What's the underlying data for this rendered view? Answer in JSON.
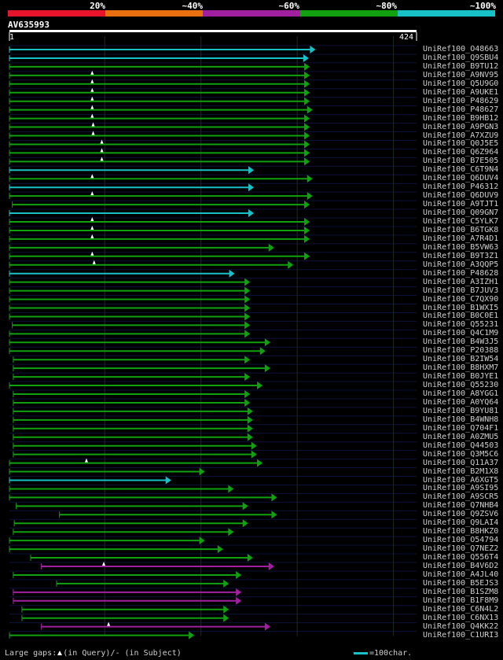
{
  "header": {
    "bands": [
      {
        "label": "20%",
        "color": "#e8142c"
      },
      {
        "label": "~40%",
        "color": "#e87010"
      },
      {
        "label": "~60%",
        "color": "#a020a0"
      },
      {
        "label": "~80%",
        "color": "#10a010"
      },
      {
        "label": "~100%",
        "color": "#18c0c8"
      }
    ]
  },
  "query": {
    "id": "AV635993",
    "start": "1",
    "end": "424",
    "length": 424,
    "line_color": "#ffffff"
  },
  "chart_data": {
    "type": "alignment-overview",
    "x_range": [
      1,
      424
    ],
    "grid_positions": [
      100,
      200,
      300,
      400
    ],
    "hits": [
      {
        "name": "UniRef100_O48663",
        "start": 1,
        "end": 319,
        "color": "#18c0c8",
        "arrow": true,
        "markers": []
      },
      {
        "name": "UniRef100_Q9SBU4",
        "start": 1,
        "end": 312,
        "color": "#18c0c8",
        "arrow": true,
        "markers": []
      },
      {
        "name": "UniRef100_B9TU12",
        "start": 1,
        "end": 313,
        "color": "#10a010",
        "arrow": true,
        "markers": []
      },
      {
        "name": "UniRef100_A9NV95",
        "start": 1,
        "end": 313,
        "color": "#10a010",
        "arrow": true,
        "markers": [
          87
        ]
      },
      {
        "name": "UniRef100_Q5U9G0",
        "start": 1,
        "end": 313,
        "color": "#10a010",
        "arrow": true,
        "markers": [
          87
        ]
      },
      {
        "name": "UniRef100_A9UKE1",
        "start": 1,
        "end": 313,
        "color": "#10a010",
        "arrow": true,
        "markers": [
          87
        ]
      },
      {
        "name": "UniRef100_P48629",
        "start": 1,
        "end": 313,
        "color": "#10a010",
        "arrow": true,
        "markers": [
          87
        ]
      },
      {
        "name": "UniRef100_P48627",
        "start": 1,
        "end": 316,
        "color": "#10a010",
        "arrow": true,
        "markers": [
          87
        ]
      },
      {
        "name": "UniRef100_B9HB12",
        "start": 1,
        "end": 313,
        "color": "#10a010",
        "arrow": true,
        "markers": [
          87
        ]
      },
      {
        "name": "UniRef100_A9PGN3",
        "start": 1,
        "end": 313,
        "color": "#10a010",
        "arrow": true,
        "markers": [
          88
        ]
      },
      {
        "name": "UniRef100_A7XZU9",
        "start": 1,
        "end": 313,
        "color": "#10a010",
        "arrow": true,
        "markers": [
          88
        ]
      },
      {
        "name": "UniRef100_Q0J5E5",
        "start": 1,
        "end": 313,
        "color": "#10a010",
        "arrow": true,
        "markers": [
          97
        ]
      },
      {
        "name": "UniRef100_Q6Z964",
        "start": 1,
        "end": 313,
        "color": "#10a010",
        "arrow": true,
        "markers": [
          97
        ]
      },
      {
        "name": "UniRef100_B7E505",
        "start": 1,
        "end": 313,
        "color": "#10a010",
        "arrow": true,
        "markers": [
          97
        ]
      },
      {
        "name": "UniRef100_C6T9N4",
        "start": 1,
        "end": 255,
        "color": "#18c0c8",
        "arrow": true,
        "markers": []
      },
      {
        "name": "UniRef100_Q6DUV4",
        "start": 1,
        "end": 316,
        "color": "#10a010",
        "arrow": true,
        "markers": [
          87
        ]
      },
      {
        "name": "UniRef100_P46312",
        "start": 1,
        "end": 255,
        "color": "#18c0c8",
        "arrow": true,
        "markers": []
      },
      {
        "name": "UniRef100_Q6DUV9",
        "start": 1,
        "end": 316,
        "color": "#10a010",
        "arrow": true,
        "markers": [
          87
        ]
      },
      {
        "name": "UniRef100_A9TJT1",
        "start": 4,
        "end": 313,
        "color": "#10a010",
        "arrow": true,
        "markers": []
      },
      {
        "name": "UniRef100_Q09GN7",
        "start": 1,
        "end": 255,
        "color": "#18c0c8",
        "arrow": true,
        "markers": []
      },
      {
        "name": "UniRef100_C5YLK7",
        "start": 1,
        "end": 313,
        "color": "#10a010",
        "arrow": true,
        "markers": [
          87
        ]
      },
      {
        "name": "UniRef100_B6TGK8",
        "start": 1,
        "end": 313,
        "color": "#10a010",
        "arrow": true,
        "markers": [
          87
        ]
      },
      {
        "name": "UniRef100_A7R4D1",
        "start": 1,
        "end": 313,
        "color": "#10a010",
        "arrow": true,
        "markers": [
          87
        ]
      },
      {
        "name": "UniRef100_B5VW63",
        "start": 1,
        "end": 276,
        "color": "#10a010",
        "arrow": true,
        "markers": []
      },
      {
        "name": "UniRef100_B9T3Z1",
        "start": 1,
        "end": 313,
        "color": "#10a010",
        "arrow": true,
        "markers": [
          87
        ]
      },
      {
        "name": "UniRef100_A3QQP5",
        "start": 1,
        "end": 296,
        "color": "#10a010",
        "arrow": true,
        "markers": [
          89
        ]
      },
      {
        "name": "UniRef100_P48628",
        "start": 1,
        "end": 235,
        "color": "#18c0c8",
        "arrow": true,
        "markers": []
      },
      {
        "name": "UniRef100_A3IZH1",
        "start": 1,
        "end": 251,
        "color": "#10a010",
        "arrow": true,
        "markers": []
      },
      {
        "name": "UniRef100_B7JUV3",
        "start": 1,
        "end": 251,
        "color": "#10a010",
        "arrow": true,
        "markers": []
      },
      {
        "name": "UniRef100_C7QX90",
        "start": 1,
        "end": 251,
        "color": "#10a010",
        "arrow": true,
        "markers": []
      },
      {
        "name": "UniRef100_B1WXI5",
        "start": 1,
        "end": 251,
        "color": "#10a010",
        "arrow": true,
        "markers": []
      },
      {
        "name": "UniRef100_B0C0E1",
        "start": 1,
        "end": 251,
        "color": "#10a010",
        "arrow": true,
        "markers": []
      },
      {
        "name": "UniRef100_Q55231",
        "start": 4,
        "end": 251,
        "color": "#10a010",
        "arrow": true,
        "markers": []
      },
      {
        "name": "UniRef100_Q4C1M9",
        "start": 1,
        "end": 251,
        "color": "#10a010",
        "arrow": true,
        "markers": []
      },
      {
        "name": "UniRef100_B4W3J5",
        "start": 1,
        "end": 272,
        "color": "#10a010",
        "arrow": true,
        "markers": []
      },
      {
        "name": "UniRef100_P20388",
        "start": 1,
        "end": 267,
        "color": "#10a010",
        "arrow": true,
        "markers": []
      },
      {
        "name": "UniRef100_B2IW54",
        "start": 5,
        "end": 251,
        "color": "#10a010",
        "arrow": true,
        "markers": []
      },
      {
        "name": "UniRef100_B8HXM7",
        "start": 5,
        "end": 272,
        "color": "#10a010",
        "arrow": true,
        "markers": []
      },
      {
        "name": "UniRef100_B0JYE1",
        "start": 5,
        "end": 251,
        "color": "#10a010",
        "arrow": true,
        "markers": []
      },
      {
        "name": "UniRef100_Q55230",
        "start": 1,
        "end": 264,
        "color": "#10a010",
        "arrow": true,
        "markers": []
      },
      {
        "name": "UniRef100_A8YGG1",
        "start": 5,
        "end": 251,
        "color": "#10a010",
        "arrow": true,
        "markers": []
      },
      {
        "name": "UniRef100_A0YQ64",
        "start": 5,
        "end": 251,
        "color": "#10a010",
        "arrow": true,
        "markers": []
      },
      {
        "name": "UniRef100_B9YU81",
        "start": 5,
        "end": 254,
        "color": "#10a010",
        "arrow": true,
        "markers": []
      },
      {
        "name": "UniRef100_B4WNH8",
        "start": 5,
        "end": 254,
        "color": "#10a010",
        "arrow": true,
        "markers": []
      },
      {
        "name": "UniRef100_Q704F1",
        "start": 5,
        "end": 254,
        "color": "#10a010",
        "arrow": true,
        "markers": []
      },
      {
        "name": "UniRef100_A0ZMU5",
        "start": 5,
        "end": 254,
        "color": "#10a010",
        "arrow": true,
        "markers": []
      },
      {
        "name": "UniRef100_Q44503",
        "start": 5,
        "end": 258,
        "color": "#10a010",
        "arrow": true,
        "markers": []
      },
      {
        "name": "UniRef100_Q3M5C6",
        "start": 5,
        "end": 258,
        "color": "#10a010",
        "arrow": true,
        "markers": []
      },
      {
        "name": "UniRef100_Q11A37",
        "start": 1,
        "end": 264,
        "color": "#10a010",
        "arrow": true,
        "markers": [
          81
        ]
      },
      {
        "name": "UniRef100_B2M1X8",
        "start": 1,
        "end": 204,
        "color": "#10a010",
        "arrow": true,
        "markers": []
      },
      {
        "name": "UniRef100_A6XGT5",
        "start": 1,
        "end": 169,
        "color": "#18c0c8",
        "arrow": true,
        "markers": []
      },
      {
        "name": "UniRef100_A9SI95",
        "start": 1,
        "end": 234,
        "color": "#10a010",
        "arrow": true,
        "markers": []
      },
      {
        "name": "UniRef100_A9SCR5",
        "start": 1,
        "end": 279,
        "color": "#10a010",
        "arrow": true,
        "markers": []
      },
      {
        "name": "UniRef100_Q7NHB4",
        "start": 8,
        "end": 249,
        "color": "#10a010",
        "arrow": true,
        "markers": []
      },
      {
        "name": "UniRef100_Q9ZSV6",
        "start": 53,
        "end": 279,
        "color": "#10a010",
        "arrow": true,
        "markers": []
      },
      {
        "name": "UniRef100_Q9LAI4",
        "start": 6,
        "end": 249,
        "color": "#10a010",
        "arrow": true,
        "markers": []
      },
      {
        "name": "UniRef100_B8HKZ0",
        "start": 5,
        "end": 234,
        "color": "#10a010",
        "arrow": true,
        "markers": []
      },
      {
        "name": "UniRef100_O54794",
        "start": 1,
        "end": 204,
        "color": "#10a010",
        "arrow": true,
        "markers": []
      },
      {
        "name": "UniRef100_Q7NEZ2",
        "start": 1,
        "end": 223,
        "color": "#10a010",
        "arrow": true,
        "markers": []
      },
      {
        "name": "UniRef100_Q556T4",
        "start": 23,
        "end": 254,
        "color": "#10a010",
        "arrow": true,
        "markers": []
      },
      {
        "name": "UniRef100_B4V6D2",
        "start": 34,
        "end": 276,
        "color": "#a020a0",
        "arrow": true,
        "markers": [
          99
        ]
      },
      {
        "name": "UniRef100_A4JL40",
        "start": 5,
        "end": 242,
        "color": "#10a010",
        "arrow": true,
        "markers": []
      },
      {
        "name": "UniRef100_B5EJS3",
        "start": 50,
        "end": 229,
        "color": "#10a010",
        "arrow": true,
        "markers": []
      },
      {
        "name": "UniRef100_B1SZM8",
        "start": 5,
        "end": 242,
        "color": "#a020a0",
        "arrow": true,
        "markers": []
      },
      {
        "name": "UniRef100_B1F8M9",
        "start": 5,
        "end": 242,
        "color": "#a020a0",
        "arrow": true,
        "markers": []
      },
      {
        "name": "UniRef100_C6N4L2",
        "start": 14,
        "end": 229,
        "color": "#10a010",
        "arrow": true,
        "markers": []
      },
      {
        "name": "UniRef100_C6NX13",
        "start": 14,
        "end": 229,
        "color": "#10a010",
        "arrow": true,
        "markers": []
      },
      {
        "name": "UniRef100_Q4KK22",
        "start": 34,
        "end": 272,
        "color": "#a020a0",
        "arrow": true,
        "markers": [
          104
        ]
      },
      {
        "name": "UniRef100_C1URI3",
        "start": 1,
        "end": 193,
        "color": "#10a010",
        "arrow": true,
        "markers": []
      }
    ]
  },
  "footer": {
    "gaps_prefix": "Large gaps:",
    "gaps_query": "(in Query)/",
    "gaps_dash": "-",
    "gaps_subject": " (in Subject)",
    "legend_color": "#18c0c8",
    "legend_text": "=100char."
  }
}
